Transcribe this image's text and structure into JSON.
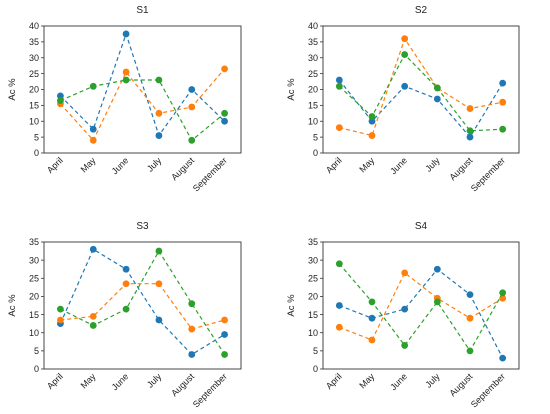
{
  "chart_data": [
    {
      "type": "line",
      "title": "S1",
      "ylabel": "Ac %",
      "xlabel": "",
      "ylim": [
        0,
        40
      ],
      "yticks": [
        0,
        5,
        10,
        15,
        20,
        25,
        30,
        35,
        40
      ],
      "categories": [
        "April",
        "May",
        "June",
        "July",
        "August",
        "September"
      ],
      "line_style": "dashed",
      "series": [
        {
          "color": "#1f77b4",
          "values": [
            18,
            7.5,
            37.5,
            5.5,
            20,
            10
          ]
        },
        {
          "color": "#ff7f0e",
          "values": [
            15.5,
            4,
            25.5,
            12.5,
            14.5,
            26.5
          ]
        },
        {
          "color": "#2ca02c",
          "values": [
            16.5,
            21,
            23,
            23,
            4,
            12.5
          ]
        }
      ]
    },
    {
      "type": "line",
      "title": "S2",
      "ylabel": "Ac %",
      "xlabel": "",
      "ylim": [
        0,
        40
      ],
      "yticks": [
        0,
        5,
        10,
        15,
        20,
        25,
        30,
        35,
        40
      ],
      "categories": [
        "April",
        "May",
        "June",
        "July",
        "August",
        "September"
      ],
      "line_style": "dashed",
      "series": [
        {
          "color": "#1f77b4",
          "values": [
            23,
            10,
            21,
            17,
            5,
            22
          ]
        },
        {
          "color": "#ff7f0e",
          "values": [
            8,
            5.5,
            36,
            20.5,
            14,
            16
          ]
        },
        {
          "color": "#2ca02c",
          "values": [
            21,
            11.5,
            31,
            20.5,
            7,
            7.5
          ]
        }
      ]
    },
    {
      "type": "line",
      "title": "S3",
      "ylabel": "Ac %",
      "xlabel": "",
      "ylim": [
        0,
        35
      ],
      "yticks": [
        0,
        5,
        10,
        15,
        20,
        25,
        30,
        35
      ],
      "categories": [
        "April",
        "May",
        "June",
        "July",
        "August",
        "September"
      ],
      "line_style": "dashed",
      "series": [
        {
          "color": "#1f77b4",
          "values": [
            12.5,
            33,
            27.5,
            13.5,
            4,
            9.5
          ]
        },
        {
          "color": "#ff7f0e",
          "values": [
            13.5,
            14.5,
            23.5,
            23.5,
            11,
            13.5
          ]
        },
        {
          "color": "#2ca02c",
          "values": [
            16.5,
            12,
            16.5,
            32.5,
            18,
            4
          ]
        }
      ]
    },
    {
      "type": "line",
      "title": "S4",
      "ylabel": "Ac %",
      "xlabel": "",
      "ylim": [
        0,
        35
      ],
      "yticks": [
        0,
        5,
        10,
        15,
        20,
        25,
        30,
        35
      ],
      "categories": [
        "April",
        "May",
        "June",
        "July",
        "August",
        "September"
      ],
      "line_style": "dashed",
      "series": [
        {
          "color": "#1f77b4",
          "values": [
            17.5,
            14,
            16.5,
            27.5,
            20.5,
            3
          ]
        },
        {
          "color": "#ff7f0e",
          "values": [
            11.5,
            8,
            26.5,
            19.5,
            14,
            19.5
          ]
        },
        {
          "color": "#2ca02c",
          "values": [
            29,
            18.5,
            6.5,
            18.5,
            5,
            21
          ]
        }
      ]
    }
  ]
}
